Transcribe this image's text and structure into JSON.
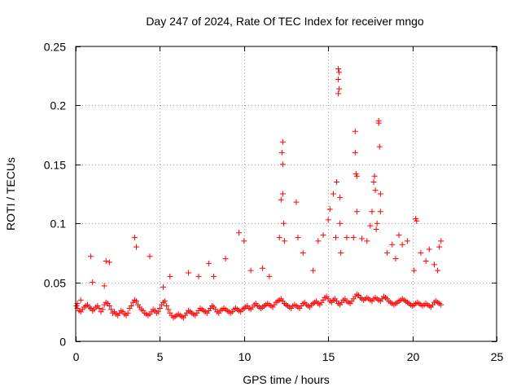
{
  "chart_data": {
    "type": "scatter",
    "title": "Day 247 of 2024, Rate Of TEC Index for receiver mngo",
    "xlabel": "GPS time / hours",
    "ylabel": "ROTI / TECUs",
    "xlim": [
      0,
      25
    ],
    "ylim": [
      0,
      0.25
    ],
    "xticks": [
      0,
      5,
      10,
      15,
      20,
      25
    ],
    "xtick_labels": [
      "0",
      "5",
      "10",
      "15",
      "20",
      "25"
    ],
    "yticks": [
      0,
      0.05,
      0.1,
      0.15,
      0.2,
      0.25
    ],
    "ytick_labels": [
      "0",
      "0.05",
      "0.1",
      "0.15",
      "0.2",
      "0.25"
    ],
    "grid": true,
    "marker": "+",
    "marker_color": "#ff0000",
    "series": [
      {
        "name": "ROTI",
        "x": [
          0.05,
          0.1,
          0.2,
          0.3,
          0.4,
          0.5,
          0.6,
          0.7,
          0.8,
          0.9,
          1.0,
          1.1,
          1.2,
          1.3,
          1.4,
          1.5,
          1.6,
          1.7,
          1.8,
          1.9,
          2.0,
          2.1,
          2.2,
          2.3,
          2.4,
          2.5,
          2.6,
          2.7,
          2.8,
          2.9,
          3.0,
          3.1,
          3.2,
          3.3,
          3.4,
          3.5,
          3.6,
          3.7,
          3.8,
          3.9,
          4.0,
          4.1,
          4.2,
          4.3,
          4.4,
          4.5,
          4.6,
          4.7,
          4.8,
          4.9,
          5.0,
          5.1,
          5.2,
          5.3,
          5.4,
          5.5,
          5.6,
          5.7,
          5.8,
          5.9,
          6.0,
          6.1,
          6.2,
          6.3,
          6.4,
          6.5,
          6.6,
          6.7,
          6.8,
          6.9,
          7.0,
          7.1,
          7.2,
          7.3,
          7.4,
          7.5,
          7.6,
          7.7,
          7.8,
          7.9,
          8.0,
          8.1,
          8.2,
          8.3,
          8.4,
          8.5,
          8.6,
          8.7,
          8.8,
          8.9,
          9.0,
          9.1,
          9.2,
          9.3,
          9.4,
          9.5,
          9.6,
          9.7,
          9.8,
          9.9,
          10.0,
          10.1,
          10.2,
          10.3,
          10.4,
          10.5,
          10.6,
          10.7,
          10.8,
          10.9,
          11.0,
          11.1,
          11.2,
          11.3,
          11.4,
          11.5,
          11.6,
          11.7,
          11.8,
          11.9,
          12.0,
          12.1,
          12.2,
          12.3,
          12.4,
          12.5,
          12.6,
          12.7,
          12.8,
          12.9,
          13.0,
          13.1,
          13.2,
          13.3,
          13.4,
          13.5,
          13.6,
          13.7,
          13.8,
          13.9,
          14.0,
          14.1,
          14.2,
          14.3,
          14.4,
          14.5,
          14.6,
          14.7,
          14.8,
          14.9,
          15.0,
          15.1,
          15.2,
          15.3,
          15.4,
          15.5,
          15.6,
          15.7,
          15.8,
          15.9,
          16.0,
          16.1,
          16.2,
          16.3,
          16.4,
          16.5,
          16.6,
          16.7,
          16.8,
          16.9,
          17.0,
          17.1,
          17.2,
          17.3,
          17.4,
          17.5,
          17.6,
          17.7,
          17.8,
          17.9,
          18.0,
          18.1,
          18.2,
          18.3,
          18.4,
          18.5,
          18.6,
          18.7,
          18.8,
          18.9,
          19.0,
          19.1,
          19.2,
          19.3,
          19.4,
          19.5,
          19.6,
          19.7,
          19.8,
          19.9,
          20.0,
          20.1,
          20.2,
          20.3,
          20.4,
          20.5,
          20.6,
          20.7,
          20.8,
          20.9,
          21.0,
          21.1,
          21.2,
          21.3,
          21.4,
          21.5,
          21.6,
          21.7,
          0.1,
          0.3,
          0.9,
          1.0,
          1.7,
          1.8,
          2.0,
          3.5,
          3.6,
          4.4,
          5.2,
          5.6,
          6.7,
          7.3,
          7.9,
          8.2,
          8.9,
          9.7,
          10.0,
          10.4,
          11.1,
          11.5,
          12.1,
          12.2,
          12.25,
          12.3,
          12.3,
          12.3,
          12.35,
          12.4,
          13.1,
          13.2,
          13.5,
          14.1,
          14.4,
          14.7,
          15.0,
          15.1,
          15.3,
          15.45,
          15.5,
          15.6,
          15.6,
          15.6,
          15.65,
          15.65,
          15.7,
          15.7,
          15.75,
          16.1,
          16.5,
          16.6,
          16.6,
          16.65,
          16.7,
          16.7,
          17.0,
          17.3,
          17.5,
          17.6,
          17.7,
          17.75,
          17.8,
          17.85,
          17.9,
          18.0,
          18.0,
          18.05,
          18.1,
          18.1,
          18.5,
          18.8,
          19.0,
          19.2,
          19.4,
          19.7,
          20.1,
          20.2,
          20.25,
          20.5,
          20.8,
          21.0,
          21.3,
          21.5,
          21.6,
          21.7
        ],
        "y": [
          0.03,
          0.028,
          0.026,
          0.025,
          0.027,
          0.029,
          0.03,
          0.031,
          0.029,
          0.028,
          0.026,
          0.027,
          0.029,
          0.03,
          0.028,
          0.025,
          0.027,
          0.031,
          0.033,
          0.032,
          0.03,
          0.027,
          0.024,
          0.025,
          0.023,
          0.022,
          0.024,
          0.026,
          0.025,
          0.023,
          0.022,
          0.024,
          0.028,
          0.03,
          0.033,
          0.035,
          0.034,
          0.031,
          0.029,
          0.027,
          0.026,
          0.024,
          0.023,
          0.022,
          0.023,
          0.025,
          0.027,
          0.026,
          0.024,
          0.025,
          0.028,
          0.031,
          0.033,
          0.034,
          0.03,
          0.027,
          0.024,
          0.022,
          0.02,
          0.021,
          0.022,
          0.023,
          0.022,
          0.021,
          0.02,
          0.022,
          0.024,
          0.026,
          0.025,
          0.024,
          0.023,
          0.022,
          0.024,
          0.026,
          0.028,
          0.027,
          0.026,
          0.025,
          0.024,
          0.026,
          0.028,
          0.03,
          0.029,
          0.027,
          0.025,
          0.024,
          0.026,
          0.027,
          0.028,
          0.027,
          0.026,
          0.025,
          0.024,
          0.025,
          0.027,
          0.028,
          0.027,
          0.026,
          0.025,
          0.027,
          0.028,
          0.029,
          0.03,
          0.028,
          0.027,
          0.029,
          0.031,
          0.032,
          0.03,
          0.029,
          0.028,
          0.029,
          0.03,
          0.031,
          0.032,
          0.031,
          0.03,
          0.029,
          0.031,
          0.033,
          0.034,
          0.035,
          0.036,
          0.034,
          0.032,
          0.031,
          0.03,
          0.029,
          0.028,
          0.03,
          0.031,
          0.03,
          0.029,
          0.028,
          0.03,
          0.032,
          0.033,
          0.031,
          0.03,
          0.029,
          0.031,
          0.032,
          0.033,
          0.034,
          0.032,
          0.031,
          0.033,
          0.035,
          0.037,
          0.038,
          0.036,
          0.034,
          0.033,
          0.035,
          0.036,
          0.034,
          0.032,
          0.031,
          0.033,
          0.035,
          0.036,
          0.034,
          0.033,
          0.032,
          0.034,
          0.036,
          0.038,
          0.04,
          0.039,
          0.037,
          0.036,
          0.035,
          0.036,
          0.037,
          0.036,
          0.035,
          0.034,
          0.036,
          0.037,
          0.036,
          0.035,
          0.034,
          0.036,
          0.038,
          0.037,
          0.036,
          0.034,
          0.033,
          0.032,
          0.031,
          0.032,
          0.033,
          0.034,
          0.035,
          0.036,
          0.035,
          0.034,
          0.033,
          0.032,
          0.031,
          0.03,
          0.031,
          0.032,
          0.033,
          0.032,
          0.031,
          0.03,
          0.031,
          0.032,
          0.031,
          0.03,
          0.029,
          0.031,
          0.033,
          0.034,
          0.033,
          0.032,
          0.031,
          0.032,
          0.035,
          0.072,
          0.05,
          0.047,
          0.068,
          0.067,
          0.088,
          0.08,
          0.072,
          0.046,
          0.055,
          0.058,
          0.055,
          0.066,
          0.055,
          0.07,
          0.092,
          0.085,
          0.06,
          0.062,
          0.055,
          0.088,
          0.12,
          0.16,
          0.169,
          0.15,
          0.125,
          0.1,
          0.085,
          0.118,
          0.088,
          0.075,
          0.06,
          0.085,
          0.09,
          0.103,
          0.112,
          0.125,
          0.088,
          0.135,
          0.21,
          0.222,
          0.231,
          0.228,
          0.214,
          0.122,
          0.1,
          0.075,
          0.088,
          0.088,
          0.178,
          0.16,
          0.142,
          0.14,
          0.11,
          0.087,
          0.085,
          0.098,
          0.11,
          0.135,
          0.14,
          0.128,
          0.095,
          0.1,
          0.187,
          0.185,
          0.165,
          0.125,
          0.11,
          0.075,
          0.082,
          0.07,
          0.09,
          0.082,
          0.085,
          0.06,
          0.104,
          0.102,
          0.075,
          0.068,
          0.078,
          0.065,
          0.06,
          0.08,
          0.085
        ]
      }
    ]
  }
}
